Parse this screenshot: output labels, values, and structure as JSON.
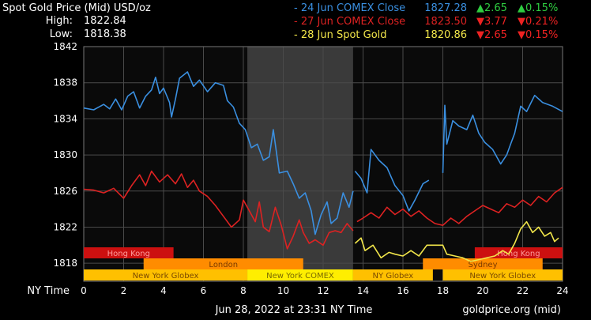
{
  "header": {
    "title": "Spot Gold Price (Mid) USD/oz",
    "high_label": "High:",
    "high_value": "1822.84",
    "low_label": "Low:",
    "low_value": "1818.38"
  },
  "legend": [
    {
      "name": "- 24 Jun COMEX Close",
      "price": "1827.28",
      "change": "2.65",
      "pct": "0.15%",
      "direction": "up",
      "color": "#3a8fe0"
    },
    {
      "name": "- 27 Jun COMEX Close",
      "price": "1823.50",
      "change": "3.77",
      "pct": "0.21%",
      "direction": "down",
      "color": "#dd2222"
    },
    {
      "name": "- 28 Jun Spot Gold",
      "price": "1820.86",
      "change": "2.65",
      "pct": "0.15%",
      "direction": "down",
      "color": "#f2e64a"
    }
  ],
  "footer": {
    "ny_time_label": "NY Time",
    "timestamp": "Jun 28, 2022 at 23:31 NY Time",
    "source": "goldprice.org (mid)"
  },
  "colors": {
    "background": "#000000",
    "plot_background": "#0a0a0a",
    "grid": "#4a4a4a",
    "highlight_band": "#3a3a3a",
    "axis_text": "#ffffff",
    "up": "#2ecc40",
    "down": "#ee2222",
    "session_hk": "#cc1010",
    "session_london": "#ff8c00",
    "session_ny": "#ffc000",
    "session_ny_comex": "#ffee00",
    "session_sydney": "#ff8c00"
  },
  "chart_data": {
    "type": "line",
    "title": "Spot Gold Price (Mid) USD/oz",
    "xlabel": "NY Time",
    "ylabel": "",
    "xlim": [
      0,
      24
    ],
    "ylim": [
      1816,
      1842
    ],
    "x_ticks": [
      0,
      2,
      4,
      6,
      8,
      10,
      12,
      14,
      16,
      18,
      20,
      22,
      24
    ],
    "y_ticks": [
      1818,
      1822,
      1826,
      1830,
      1834,
      1838,
      1842
    ],
    "grid": true,
    "highlight_band": {
      "x0": 8.2,
      "x1": 13.5
    },
    "series": [
      {
        "name": "24 Jun COMEX Close",
        "color": "#3a8fe0",
        "segments": [
          [
            [
              0,
              1835.2
            ],
            [
              0.5,
              1835.0
            ],
            [
              1.0,
              1835.6
            ],
            [
              1.3,
              1835.1
            ],
            [
              1.6,
              1836.2
            ],
            [
              1.9,
              1835.0
            ],
            [
              2.2,
              1836.5
            ],
            [
              2.5,
              1837.0
            ],
            [
              2.8,
              1835.2
            ],
            [
              3.1,
              1836.5
            ],
            [
              3.4,
              1837.2
            ],
            [
              3.6,
              1838.6
            ],
            [
              3.8,
              1836.8
            ],
            [
              4.0,
              1837.4
            ],
            [
              4.3,
              1835.8
            ],
            [
              4.4,
              1834.2
            ],
            [
              4.6,
              1836.2
            ],
            [
              4.8,
              1838.5
            ],
            [
              5.2,
              1839.2
            ],
            [
              5.5,
              1837.6
            ],
            [
              5.8,
              1838.3
            ],
            [
              6.2,
              1837.0
            ],
            [
              6.6,
              1838.0
            ],
            [
              7.0,
              1837.7
            ],
            [
              7.2,
              1836.0
            ],
            [
              7.5,
              1835.3
            ],
            [
              7.8,
              1833.5
            ],
            [
              8.1,
              1832.8
            ],
            [
              8.4,
              1830.8
            ],
            [
              8.7,
              1831.2
            ],
            [
              9.0,
              1829.4
            ],
            [
              9.3,
              1829.8
            ],
            [
              9.5,
              1832.8
            ],
            [
              9.8,
              1828.0
            ],
            [
              10.2,
              1828.2
            ],
            [
              10.5,
              1826.8
            ],
            [
              10.8,
              1825.2
            ],
            [
              11.1,
              1825.8
            ],
            [
              11.4,
              1823.8
            ],
            [
              11.6,
              1821.2
            ],
            [
              11.9,
              1823.4
            ],
            [
              12.2,
              1824.8
            ],
            [
              12.4,
              1822.4
            ],
            [
              12.7,
              1823.0
            ],
            [
              13.0,
              1825.8
            ],
            [
              13.3,
              1824.2
            ],
            [
              13.5,
              1826.0
            ]
          ],
          [
            [
              13.6,
              1828.2
            ],
            [
              13.9,
              1827.4
            ],
            [
              14.2,
              1825.8
            ],
            [
              14.4,
              1830.6
            ],
            [
              14.8,
              1829.4
            ],
            [
              15.2,
              1828.6
            ],
            [
              15.6,
              1826.6
            ],
            [
              16.0,
              1825.5
            ],
            [
              16.3,
              1823.8
            ],
            [
              16.6,
              1825.0
            ],
            [
              17.0,
              1826.8
            ],
            [
              17.3,
              1827.2
            ]
          ],
          [
            [
              18.0,
              1828.0
            ],
            [
              18.1,
              1835.5
            ],
            [
              18.2,
              1831.2
            ],
            [
              18.5,
              1833.8
            ],
            [
              18.8,
              1833.2
            ],
            [
              19.2,
              1832.8
            ],
            [
              19.5,
              1834.4
            ],
            [
              19.8,
              1832.4
            ],
            [
              20.1,
              1831.4
            ],
            [
              20.5,
              1830.6
            ],
            [
              20.9,
              1829.0
            ],
            [
              21.2,
              1830.0
            ],
            [
              21.4,
              1831.2
            ],
            [
              21.6,
              1832.4
            ],
            [
              21.9,
              1835.4
            ],
            [
              22.2,
              1834.8
            ],
            [
              22.6,
              1836.6
            ],
            [
              23.0,
              1835.8
            ],
            [
              23.5,
              1835.4
            ],
            [
              24.0,
              1834.8
            ]
          ]
        ]
      },
      {
        "name": "27 Jun COMEX Close",
        "color": "#dd2222",
        "segments": [
          [
            [
              0,
              1826.2
            ],
            [
              0.5,
              1826.1
            ],
            [
              1.0,
              1825.8
            ],
            [
              1.5,
              1826.3
            ],
            [
              2.0,
              1825.2
            ],
            [
              2.4,
              1826.6
            ],
            [
              2.8,
              1827.8
            ],
            [
              3.1,
              1826.6
            ],
            [
              3.4,
              1828.2
            ],
            [
              3.8,
              1827.0
            ],
            [
              4.2,
              1827.8
            ],
            [
              4.6,
              1826.8
            ],
            [
              4.9,
              1827.9
            ],
            [
              5.2,
              1826.4
            ],
            [
              5.5,
              1827.2
            ],
            [
              5.8,
              1826.0
            ],
            [
              6.2,
              1825.4
            ],
            [
              6.6,
              1824.4
            ],
            [
              7.0,
              1823.2
            ],
            [
              7.4,
              1822.0
            ],
            [
              7.8,
              1822.8
            ],
            [
              8.0,
              1825.0
            ],
            [
              8.3,
              1823.8
            ],
            [
              8.6,
              1822.6
            ],
            [
              8.8,
              1824.8
            ],
            [
              9.0,
              1822.0
            ],
            [
              9.3,
              1821.5
            ],
            [
              9.6,
              1824.2
            ],
            [
              9.9,
              1822.2
            ],
            [
              10.2,
              1819.6
            ],
            [
              10.5,
              1821.0
            ],
            [
              10.8,
              1822.8
            ],
            [
              11.0,
              1821.4
            ],
            [
              11.3,
              1820.2
            ],
            [
              11.6,
              1820.6
            ],
            [
              12.0,
              1820.0
            ],
            [
              12.3,
              1821.4
            ],
            [
              12.6,
              1821.6
            ],
            [
              12.9,
              1821.4
            ],
            [
              13.2,
              1822.4
            ],
            [
              13.5,
              1821.6
            ]
          ],
          [
            [
              13.7,
              1822.6
            ],
            [
              14.0,
              1823.0
            ],
            [
              14.4,
              1823.6
            ],
            [
              14.8,
              1823.0
            ],
            [
              15.2,
              1824.2
            ],
            [
              15.6,
              1823.4
            ],
            [
              16.0,
              1824.0
            ],
            [
              16.4,
              1823.2
            ],
            [
              16.8,
              1823.8
            ],
            [
              17.2,
              1823.0
            ],
            [
              17.6,
              1822.4
            ],
            [
              18.0,
              1822.2
            ],
            [
              18.4,
              1823.0
            ],
            [
              18.8,
              1822.4
            ],
            [
              19.2,
              1823.2
            ],
            [
              19.6,
              1823.8
            ],
            [
              20.0,
              1824.4
            ],
            [
              20.4,
              1824.0
            ],
            [
              20.8,
              1823.6
            ],
            [
              21.2,
              1824.6
            ],
            [
              21.6,
              1824.2
            ],
            [
              22.0,
              1825.0
            ],
            [
              22.4,
              1824.4
            ],
            [
              22.8,
              1825.4
            ],
            [
              23.2,
              1824.8
            ],
            [
              23.6,
              1825.8
            ],
            [
              24.0,
              1826.4
            ]
          ]
        ]
      },
      {
        "name": "28 Jun Spot Gold",
        "color": "#f2e64a",
        "segments": [
          [
            [
              13.6,
              1820.2
            ],
            [
              13.9,
              1820.8
            ],
            [
              14.1,
              1819.4
            ],
            [
              14.5,
              1820.0
            ],
            [
              14.9,
              1818.6
            ],
            [
              15.3,
              1819.2
            ],
            [
              15.6,
              1819.0
            ],
            [
              16.0,
              1818.8
            ],
            [
              16.4,
              1819.4
            ],
            [
              16.8,
              1818.8
            ],
            [
              17.2,
              1820.0
            ],
            [
              17.6,
              1820.0
            ],
            [
              18.0,
              1820.0
            ],
            [
              18.2,
              1819.0
            ],
            [
              18.6,
              1818.8
            ],
            [
              19.0,
              1818.6
            ],
            [
              19.4,
              1818.2
            ],
            [
              19.8,
              1818.4
            ],
            [
              20.2,
              1818.6
            ],
            [
              20.6,
              1818.8
            ],
            [
              21.0,
              1819.4
            ],
            [
              21.3,
              1819.0
            ],
            [
              21.6,
              1820.2
            ],
            [
              21.9,
              1821.8
            ],
            [
              22.2,
              1822.6
            ],
            [
              22.5,
              1821.4
            ],
            [
              22.8,
              1822.0
            ],
            [
              23.1,
              1821.0
            ],
            [
              23.4,
              1821.4
            ],
            [
              23.6,
              1820.4
            ],
            [
              23.8,
              1820.8
            ]
          ]
        ]
      }
    ]
  },
  "sessions": [
    {
      "label": "Hong Kong",
      "row": 0,
      "start": 0,
      "end": 4.5,
      "color": "#cc1010",
      "text_color": "#ff9d9d"
    },
    {
      "label": "Hong Kong",
      "row": 0,
      "start": 19.6,
      "end": 24,
      "color": "#cc1010",
      "text_color": "#ff9d9d"
    },
    {
      "label": "London",
      "row": 1,
      "start": 3.0,
      "end": 11.0,
      "color": "#ff8c00",
      "text_color": "#7a3a00"
    },
    {
      "label": "Sydney",
      "row": 1,
      "start": 17.0,
      "end": 23.0,
      "color": "#ff8c00",
      "text_color": "#7a3a00"
    },
    {
      "label": "New York Globex",
      "row": 2,
      "start": 0,
      "end": 8.2,
      "color": "#ffc000",
      "text_color": "#7a4a00"
    },
    {
      "label": "New York COMEX",
      "row": 2,
      "start": 8.2,
      "end": 13.5,
      "color": "#ffee00",
      "text_color": "#7a6a00"
    },
    {
      "label": "NY Globex",
      "row": 2,
      "start": 13.5,
      "end": 17.5,
      "color": "#ffc000",
      "text_color": "#7a4a00"
    },
    {
      "label": "New York Globex",
      "row": 2,
      "start": 18.0,
      "end": 24,
      "color": "#ffc000",
      "text_color": "#7a4a00"
    }
  ]
}
